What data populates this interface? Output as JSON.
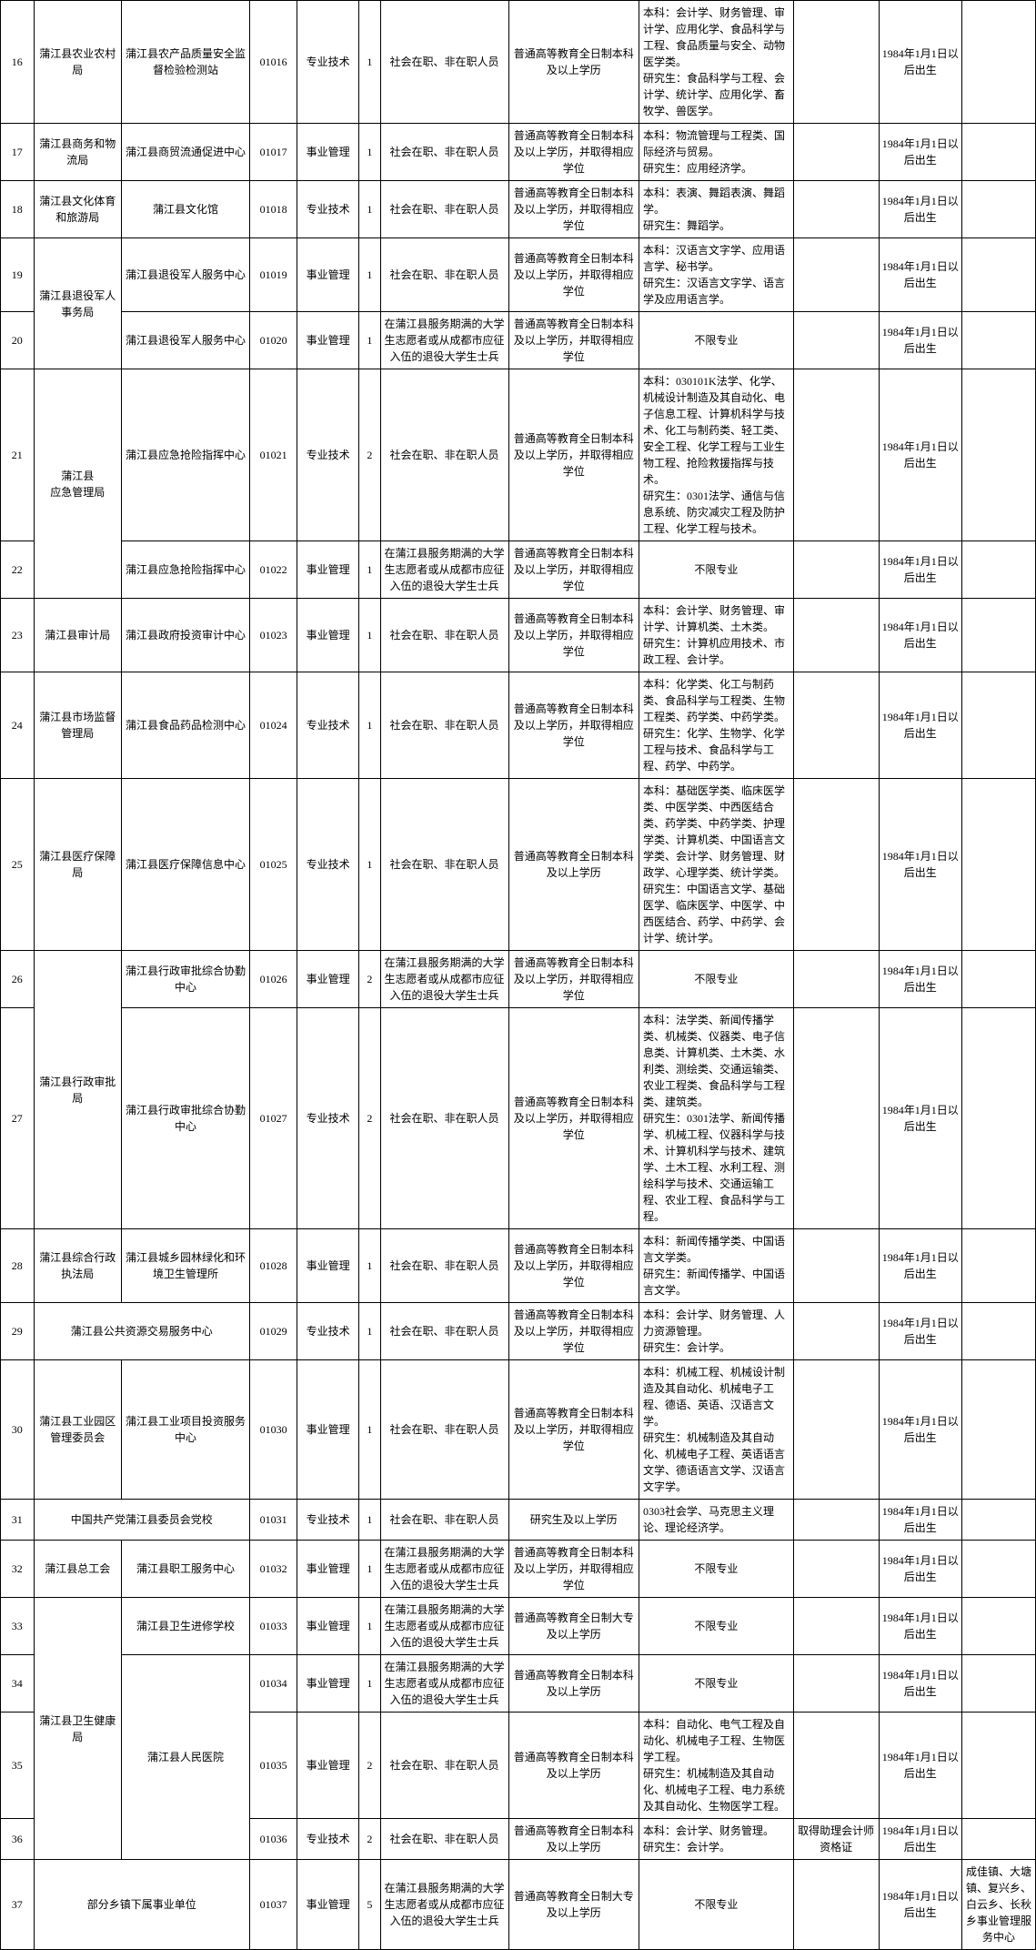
{
  "dob_default": "1984年1月1日以后出生",
  "scope": {
    "std": "社会在职、非在职人员",
    "vet": "在蒲江县服务期满的大学生志愿者或从成都市应征入伍的退役大学生士兵"
  },
  "edu": {
    "bk_degree": "普通高等教育全日制本科及以上学历，并取得相应学位",
    "bk": "普通高等教育全日制本科及以上学历",
    "dz": "普通高等教育全日制大专及以上学历",
    "yj": "研究生及以上学历"
  },
  "rows": [
    {
      "idx": "16",
      "dept": "蒲江县农业农村局",
      "unit": "蒲江县农产品质量安全监督检验检测站",
      "code": "01016",
      "type": "专业技术",
      "num": "1",
      "scope": "std",
      "edu": "bk",
      "major": "本科：会计学、财务管理、审计学、应用化学、食品科学与工程、食品质量与安全、动物医学类。\n研究生：食品科学与工程、会计学、统计学、应用化学、畜牧学、兽医学。"
    },
    {
      "idx": "17",
      "dept": "蒲江县商务和物流局",
      "unit": "蒲江县商贸流通促进中心",
      "code": "01017",
      "type": "事业管理",
      "num": "1",
      "scope": "std",
      "edu": "bk_degree",
      "major": "本科：物流管理与工程类、国际经济与贸易。\n研究生：应用经济学。"
    },
    {
      "idx": "18",
      "dept": "蒲江县文化体育和旅游局",
      "unit": "蒲江县文化馆",
      "code": "01018",
      "type": "专业技术",
      "num": "1",
      "scope": "std",
      "edu": "bk_degree",
      "major": "本科：表演、舞蹈表演、舞蹈学。\n研究生：舞蹈学。"
    },
    {
      "idx": "19",
      "dept": "蒲江县退役军人事务局",
      "dept_rowspan": 2,
      "unit": "蒲江县退役军人服务中心",
      "code": "01019",
      "type": "事业管理",
      "num": "1",
      "scope": "std",
      "edu": "bk_degree",
      "major": "本科：汉语言文字学、应用语言学、秘书学。\n研究生：汉语言文字学、语言学及应用语言学。"
    },
    {
      "idx": "20",
      "unit": "蒲江县退役军人服务中心",
      "code": "01020",
      "type": "事业管理",
      "num": "1",
      "scope": "vet",
      "edu": "bk_degree",
      "major": "不限专业",
      "major_center": true
    },
    {
      "idx": "21",
      "dept": "蒲江县\n应急管理局",
      "dept_rowspan": 2,
      "unit": "蒲江县应急抢险指挥中心",
      "code": "01021",
      "type": "专业技术",
      "num": "2",
      "scope": "std",
      "edu": "bk_degree",
      "major": "本科：030101K法学、化学、机械设计制造及其自动化、电子信息工程、计算机科学与技术、化工与制药类、轻工类、安全工程、化学工程与工业生物工程、抢险救援指挥与技术。\n研究生：0301法学、通信与信息系统、防灾减灾工程及防护工程、化学工程与技术。"
    },
    {
      "idx": "22",
      "unit": "蒲江县应急抢险指挥中心",
      "code": "01022",
      "type": "事业管理",
      "num": "1",
      "scope": "vet",
      "edu": "bk_degree",
      "major": "不限专业",
      "major_center": true
    },
    {
      "idx": "23",
      "dept": "蒲江县审计局",
      "unit": "蒲江县政府投资审计中心",
      "code": "01023",
      "type": "事业管理",
      "num": "1",
      "scope": "std",
      "edu": "bk_degree",
      "major": "本科：会计学、财务管理、审计学、计算机类、土木类。\n研究生：计算机应用技术、市政工程、会计学。"
    },
    {
      "idx": "24",
      "dept": "蒲江县市场监督管理局",
      "unit": "蒲江县食品药品检测中心",
      "code": "01024",
      "type": "专业技术",
      "num": "1",
      "scope": "std",
      "edu": "bk_degree",
      "major": "本科：化学类、化工与制药类、食品科学与工程类、生物工程类、药学类、中药学类。\n研究生：化学、生物学、化学工程与技术、食品科学与工程、药学、中药学。"
    },
    {
      "idx": "25",
      "dept": "蒲江县医疗保障局",
      "unit": "蒲江县医疗保障信息中心",
      "code": "01025",
      "type": "专业技术",
      "num": "1",
      "scope": "std",
      "edu": "bk",
      "major": "本科：基础医学类、临床医学类、中医学类、中西医结合类、药学类、中药学类、护理学类、计算机类、中国语言文学类、会计学、财务管理、财政学、心理学类、统计学类。\n研究生：中国语言文学、基础医学、临床医学、中医学、中西医结合、药学、中药学、会计学、统计学。"
    },
    {
      "idx": "26",
      "dept": "蒲江县行政审批局",
      "dept_rowspan": 2,
      "unit": "蒲江县行政审批综合协勤中心",
      "code": "01026",
      "type": "事业管理",
      "num": "2",
      "scope": "vet",
      "edu": "bk_degree",
      "major": "不限专业",
      "major_center": true
    },
    {
      "idx": "27",
      "unit": "蒲江县行政审批综合协勤中心",
      "code": "01027",
      "type": "专业技术",
      "num": "2",
      "scope": "std",
      "edu": "bk_degree",
      "major": "本科：法学类、新闻传播学类、机械类、仪器类、电子信息类、计算机类、土木类、水利类、测绘类、交通运输类、农业工程类、食品科学与工程类、建筑类。\n研究生：0301法学、新闻传播学、机械工程、仪器科学与技术、计算机科学与技术、建筑学、土木工程、水利工程、测绘科学与技术、交通运输工程、农业工程、食品科学与工程。"
    },
    {
      "idx": "28",
      "dept": "蒲江县综合行政执法局",
      "unit": "蒲江县城乡园林绿化和环境卫生管理所",
      "code": "01028",
      "type": "事业管理",
      "num": "1",
      "scope": "std",
      "edu": "bk_degree",
      "major": "本科：新闻传播学类、中国语言文学类。\n研究生：新闻传播学、中国语言文学。"
    },
    {
      "idx": "29",
      "dept": "蒲江县公共资源交易服务中心",
      "dept_colspan": 2,
      "code": "01029",
      "type": "专业技术",
      "num": "1",
      "scope": "std",
      "edu": "bk_degree",
      "major": "本科：会计学、财务管理、人力资源管理。\n研究生：会计学。"
    },
    {
      "idx": "30",
      "dept": "蒲江县工业园区管理委员会",
      "unit": "蒲江县工业项目投资服务中心",
      "code": "01030",
      "type": "事业管理",
      "num": "1",
      "scope": "std",
      "edu": "bk_degree",
      "major": "本科：机械工程、机械设计制造及其自动化、机械电子工程、德语、英语、汉语言文学。\n研究生：机械制造及其自动化、机械电子工程、英语语言文学、德语语言文学、汉语言文字学。"
    },
    {
      "idx": "31",
      "dept": "中国共产党蒲江县委员会党校",
      "dept_colspan": 2,
      "code": "01031",
      "type": "专业技术",
      "num": "1",
      "scope": "std",
      "edu": "yj",
      "major": "0303社会学、马克思主义理论、理论经济学。"
    },
    {
      "idx": "32",
      "dept": "蒲江县总工会",
      "unit": "蒲江县职工服务中心",
      "code": "01032",
      "type": "事业管理",
      "num": "1",
      "scope": "vet",
      "edu": "bk_degree",
      "major": "不限专业",
      "major_center": true
    },
    {
      "idx": "33",
      "dept": "蒲江县卫生健康局",
      "dept_rowspan": 4,
      "unit": "蒲江县卫生进修学校",
      "code": "01033",
      "type": "事业管理",
      "num": "1",
      "scope": "vet",
      "edu": "dz",
      "major": "不限专业",
      "major_center": true
    },
    {
      "idx": "34",
      "unit": "蒲江县人民医院",
      "unit_rowspan": 3,
      "code": "01034",
      "type": "事业管理",
      "num": "1",
      "scope": "vet",
      "edu": "bk",
      "major": "不限专业",
      "major_center": true
    },
    {
      "idx": "35",
      "code": "01035",
      "type": "事业管理",
      "num": "2",
      "scope": "std",
      "edu": "bk",
      "major": "本科：自动化、电气工程及自动化、机械电子工程、生物医学工程。\n研究生：机械制造及其自动化、机械电子工程、电力系统及其自动化、生物医学工程。"
    },
    {
      "idx": "36",
      "code": "01036",
      "type": "专业技术",
      "num": "2",
      "scope": "std",
      "edu": "bk",
      "major": "本科：会计学、财务管理。\n研究生：会计学。",
      "other": "取得助理会计师资格证"
    },
    {
      "idx": "37",
      "dept": "部分乡镇下属事业单位",
      "dept_colspan": 2,
      "code": "01037",
      "type": "事业管理",
      "num": "5",
      "scope": "vet",
      "edu": "dz",
      "major": "不限专业",
      "major_center": true,
      "loc": "成佳镇、大塘镇、复兴乡、白云乡、长秋乡事业管理服务中心"
    }
  ]
}
